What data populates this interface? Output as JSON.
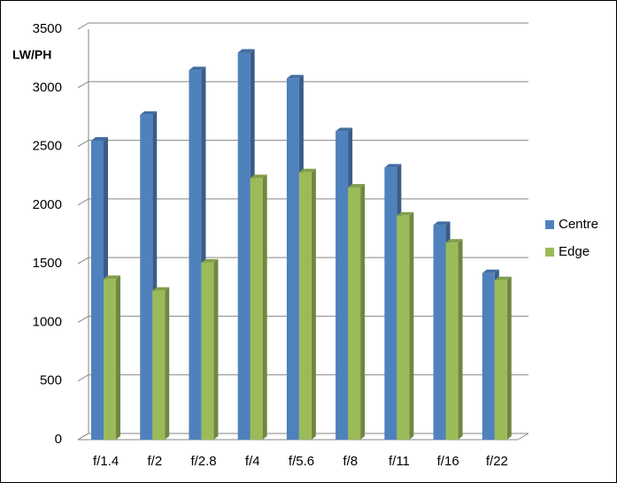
{
  "chart_data": {
    "type": "bar",
    "y_label": "LW/PH",
    "categories": [
      "f/1.4",
      "f/2",
      "f/2.8",
      "f/4",
      "f/5.6",
      "f/8",
      "f/11",
      "f/16",
      "f/22"
    ],
    "series": [
      {
        "name": "Centre",
        "color": "#4f81bd",
        "values": [
          2550,
          2770,
          3150,
          3300,
          3080,
          2630,
          2320,
          1830,
          1420
        ]
      },
      {
        "name": "Edge",
        "color": "#9bbb59",
        "values": [
          1370,
          1270,
          1510,
          2230,
          2280,
          2150,
          1910,
          1680,
          1360
        ]
      }
    ],
    "ylim": [
      0,
      3500
    ],
    "yticks": [
      0,
      500,
      1000,
      1500,
      2000,
      2500,
      3000,
      3500
    ],
    "grid": true,
    "legend": "right"
  }
}
